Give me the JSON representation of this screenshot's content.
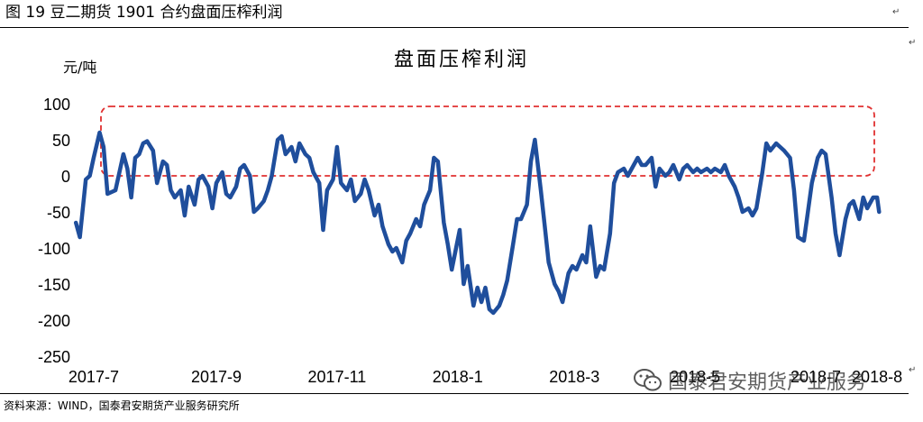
{
  "caption": "图 19  豆二期货 1901 合约盘面压榨利润",
  "source": "资料来源：WIND，国泰君安期货产业服务研究所",
  "watermark": "国泰君安期货产业服务",
  "watermark_icon": "wechat-icon",
  "colors": {
    "series": "#1f4e9c",
    "highlight_box": "#e03030",
    "text": "#000000"
  },
  "chart_data": {
    "type": "line",
    "title": "盘面压榨利润",
    "ylabel": "元/吨",
    "xlabel": "",
    "ylim": [
      -250,
      100
    ],
    "yticks": [
      100,
      50,
      0,
      -50,
      -100,
      -150,
      -200,
      -250
    ],
    "xlim": [
      "2017-06-21",
      "2018-08-16"
    ],
    "xticks": [
      {
        "date": "2017-07-01",
        "label": "2017-7"
      },
      {
        "date": "2017-09-01",
        "label": "2017-9"
      },
      {
        "date": "2017-11-01",
        "label": "2017-11"
      },
      {
        "date": "2018-01-01",
        "label": "2018-1"
      },
      {
        "date": "2018-03-01",
        "label": "2018-3"
      },
      {
        "date": "2018-05-01",
        "label": "2018-5"
      },
      {
        "date": "2018-07-01",
        "label": "2018-7"
      },
      {
        "date": "2018-08-01",
        "label": "2018-8"
      }
    ],
    "grid": false,
    "legend": "none",
    "highlight_range": [
      0,
      100
    ],
    "series": [
      {
        "values": [
          [
            "2017-06-22",
            -65
          ],
          [
            "2017-06-24",
            -85
          ],
          [
            "2017-06-27",
            -5
          ],
          [
            "2017-06-29",
            0
          ],
          [
            "2017-07-01",
            25
          ],
          [
            "2017-07-04",
            60
          ],
          [
            "2017-07-06",
            40
          ],
          [
            "2017-07-08",
            -25
          ],
          [
            "2017-07-12",
            -20
          ],
          [
            "2017-07-16",
            30
          ],
          [
            "2017-07-18",
            10
          ],
          [
            "2017-07-20",
            -30
          ],
          [
            "2017-07-22",
            25
          ],
          [
            "2017-07-24",
            30
          ],
          [
            "2017-07-26",
            45
          ],
          [
            "2017-07-28",
            48
          ],
          [
            "2017-07-31",
            35
          ],
          [
            "2017-08-02",
            -10
          ],
          [
            "2017-08-05",
            20
          ],
          [
            "2017-08-07",
            15
          ],
          [
            "2017-08-09",
            -20
          ],
          [
            "2017-08-11",
            -30
          ],
          [
            "2017-08-14",
            -20
          ],
          [
            "2017-08-16",
            -55
          ],
          [
            "2017-08-18",
            -15
          ],
          [
            "2017-08-21",
            -40
          ],
          [
            "2017-08-23",
            -5
          ],
          [
            "2017-08-25",
            0
          ],
          [
            "2017-08-28",
            -15
          ],
          [
            "2017-08-30",
            -45
          ],
          [
            "2017-09-01",
            -10
          ],
          [
            "2017-09-04",
            5
          ],
          [
            "2017-09-06",
            -25
          ],
          [
            "2017-09-08",
            -30
          ],
          [
            "2017-09-11",
            -15
          ],
          [
            "2017-09-13",
            10
          ],
          [
            "2017-09-15",
            15
          ],
          [
            "2017-09-18",
            0
          ],
          [
            "2017-09-20",
            -50
          ],
          [
            "2017-09-22",
            -45
          ],
          [
            "2017-09-25",
            -35
          ],
          [
            "2017-09-27",
            -20
          ],
          [
            "2017-09-29",
            0
          ],
          [
            "2017-10-02",
            50
          ],
          [
            "2017-10-04",
            55
          ],
          [
            "2017-10-06",
            30
          ],
          [
            "2017-10-09",
            40
          ],
          [
            "2017-10-11",
            20
          ],
          [
            "2017-10-13",
            45
          ],
          [
            "2017-10-16",
            30
          ],
          [
            "2017-10-18",
            25
          ],
          [
            "2017-10-20",
            5
          ],
          [
            "2017-10-23",
            -10
          ],
          [
            "2017-10-25",
            -75
          ],
          [
            "2017-10-27",
            -20
          ],
          [
            "2017-10-30",
            -5
          ],
          [
            "2017-11-01",
            40
          ],
          [
            "2017-11-03",
            -10
          ],
          [
            "2017-11-06",
            -20
          ],
          [
            "2017-11-08",
            -5
          ],
          [
            "2017-11-10",
            -35
          ],
          [
            "2017-11-13",
            -25
          ],
          [
            "2017-11-15",
            -5
          ],
          [
            "2017-11-17",
            -20
          ],
          [
            "2017-11-20",
            -55
          ],
          [
            "2017-11-22",
            -40
          ],
          [
            "2017-11-24",
            -70
          ],
          [
            "2017-11-27",
            -95
          ],
          [
            "2017-11-29",
            -105
          ],
          [
            "2017-12-01",
            -100
          ],
          [
            "2017-12-04",
            -120
          ],
          [
            "2017-12-06",
            -90
          ],
          [
            "2017-12-08",
            -80
          ],
          [
            "2017-12-11",
            -60
          ],
          [
            "2017-12-13",
            -70
          ],
          [
            "2017-12-15",
            -40
          ],
          [
            "2017-12-18",
            -20
          ],
          [
            "2017-12-20",
            25
          ],
          [
            "2017-12-22",
            20
          ],
          [
            "2017-12-25",
            -65
          ],
          [
            "2017-12-27",
            -95
          ],
          [
            "2017-12-29",
            -130
          ],
          [
            "2018-01-02",
            -75
          ],
          [
            "2018-01-04",
            -150
          ],
          [
            "2018-01-06",
            -125
          ],
          [
            "2018-01-09",
            -180
          ],
          [
            "2018-01-11",
            -155
          ],
          [
            "2018-01-13",
            -175
          ],
          [
            "2018-01-15",
            -155
          ],
          [
            "2018-01-17",
            -185
          ],
          [
            "2018-01-19",
            -190
          ],
          [
            "2018-01-22",
            -180
          ],
          [
            "2018-01-24",
            -165
          ],
          [
            "2018-01-26",
            -145
          ],
          [
            "2018-01-29",
            -95
          ],
          [
            "2018-01-31",
            -60
          ],
          [
            "2018-02-02",
            -60
          ],
          [
            "2018-02-05",
            -40
          ],
          [
            "2018-02-07",
            20
          ],
          [
            "2018-02-09",
            50
          ],
          [
            "2018-02-12",
            -20
          ],
          [
            "2018-02-14",
            -70
          ],
          [
            "2018-02-16",
            -120
          ],
          [
            "2018-02-19",
            -150
          ],
          [
            "2018-02-21",
            -160
          ],
          [
            "2018-02-23",
            -175
          ],
          [
            "2018-02-26",
            -135
          ],
          [
            "2018-02-28",
            -125
          ],
          [
            "2018-03-02",
            -130
          ],
          [
            "2018-03-05",
            -110
          ],
          [
            "2018-03-07",
            -120
          ],
          [
            "2018-03-09",
            -70
          ],
          [
            "2018-03-12",
            -140
          ],
          [
            "2018-03-14",
            -125
          ],
          [
            "2018-03-16",
            -130
          ],
          [
            "2018-03-19",
            -80
          ],
          [
            "2018-03-21",
            -10
          ],
          [
            "2018-03-23",
            5
          ],
          [
            "2018-03-26",
            10
          ],
          [
            "2018-03-28",
            0
          ],
          [
            "2018-03-30",
            10
          ],
          [
            "2018-04-02",
            25
          ],
          [
            "2018-04-04",
            15
          ],
          [
            "2018-04-06",
            15
          ],
          [
            "2018-04-09",
            25
          ],
          [
            "2018-04-11",
            -15
          ],
          [
            "2018-04-13",
            10
          ],
          [
            "2018-04-16",
            0
          ],
          [
            "2018-04-18",
            5
          ],
          [
            "2018-04-20",
            15
          ],
          [
            "2018-04-23",
            -5
          ],
          [
            "2018-04-25",
            10
          ],
          [
            "2018-04-27",
            15
          ],
          [
            "2018-04-30",
            5
          ],
          [
            "2018-05-02",
            10
          ],
          [
            "2018-05-04",
            5
          ],
          [
            "2018-05-07",
            10
          ],
          [
            "2018-05-09",
            5
          ],
          [
            "2018-05-11",
            10
          ],
          [
            "2018-05-14",
            5
          ],
          [
            "2018-05-16",
            15
          ],
          [
            "2018-05-18",
            0
          ],
          [
            "2018-05-21",
            -15
          ],
          [
            "2018-05-23",
            -30
          ],
          [
            "2018-05-25",
            -50
          ],
          [
            "2018-05-28",
            -45
          ],
          [
            "2018-05-30",
            -55
          ],
          [
            "2018-06-01",
            -45
          ],
          [
            "2018-06-04",
            5
          ],
          [
            "2018-06-06",
            45
          ],
          [
            "2018-06-08",
            35
          ],
          [
            "2018-06-11",
            45
          ],
          [
            "2018-06-13",
            40
          ],
          [
            "2018-06-15",
            35
          ],
          [
            "2018-06-18",
            25
          ],
          [
            "2018-06-20",
            -20
          ],
          [
            "2018-06-22",
            -85
          ],
          [
            "2018-06-25",
            -90
          ],
          [
            "2018-06-27",
            -50
          ],
          [
            "2018-06-29",
            -10
          ],
          [
            "2018-07-02",
            25
          ],
          [
            "2018-07-04",
            35
          ],
          [
            "2018-07-06",
            30
          ],
          [
            "2018-07-09",
            -30
          ],
          [
            "2018-07-11",
            -80
          ],
          [
            "2018-07-13",
            -110
          ],
          [
            "2018-07-16",
            -60
          ],
          [
            "2018-07-18",
            -40
          ],
          [
            "2018-07-20",
            -35
          ],
          [
            "2018-07-23",
            -60
          ],
          [
            "2018-07-25",
            -30
          ],
          [
            "2018-07-27",
            -45
          ],
          [
            "2018-07-30",
            -30
          ],
          [
            "2018-08-01",
            -30
          ],
          [
            "2018-08-02",
            -50
          ]
        ]
      }
    ]
  }
}
